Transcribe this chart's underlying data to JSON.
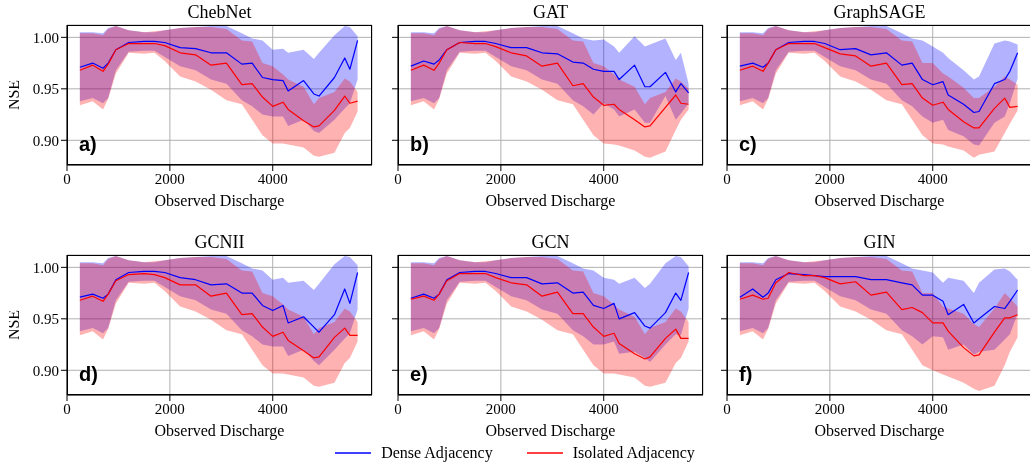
{
  "chart_data": [
    {
      "type": "line",
      "title": "ChebNet",
      "xlabel": "Observed Discharge",
      "ylabel": "NSE",
      "annotations": [
        "a)"
      ],
      "legend": "bottom",
      "grid": true,
      "xlim": [
        0,
        5930
      ],
      "xticks": [
        0,
        2000,
        4000
      ],
      "ylim": [
        0.876,
        1.012
      ],
      "yticks": [
        {
          "value": 0.9,
          "label": "0.90"
        },
        {
          "value": 0.95,
          "label": "0.95"
        },
        {
          "value": 1.0,
          "label": "1.00"
        }
      ],
      "x": [
        250,
        500,
        700,
        800,
        950,
        1200,
        1500,
        1700,
        1900,
        2200,
        2500,
        2800,
        3100,
        3400,
        3600,
        3800,
        4000,
        4200,
        4300,
        4600,
        4800,
        4900,
        5200,
        5400,
        5500,
        5650
      ],
      "series": [
        {
          "name": "Dense Adjacency",
          "color": "#0000ff",
          "values": [
            0.971,
            0.975,
            0.97,
            0.975,
            0.988,
            0.995,
            0.996,
            0.996,
            0.995,
            0.99,
            0.989,
            0.985,
            0.985,
            0.974,
            0.975,
            0.961,
            0.959,
            0.958,
            0.948,
            0.958,
            0.945,
            0.943,
            0.961,
            0.98,
            0.969,
            0.997
          ],
          "upper": [
            1.005,
            1.005,
            1.004,
            1.009,
            1.011,
            1.007,
            1.005,
            1.005,
            1.007,
            1.009,
            1.01,
            1.011,
            1.011,
            1.004,
            0.999,
            0.997,
            0.988,
            0.989,
            0.985,
            0.988,
            0.979,
            0.985,
            1.002,
            1.011,
            1.01,
            1.001
          ],
          "lower": [
            0.938,
            0.941,
            0.936,
            0.941,
            0.968,
            0.986,
            0.987,
            0.987,
            0.981,
            0.972,
            0.968,
            0.959,
            0.955,
            0.939,
            0.933,
            0.925,
            0.923,
            0.923,
            0.914,
            0.92,
            0.909,
            0.907,
            0.92,
            0.931,
            0.936,
            0.959
          ]
        },
        {
          "name": "Isolated Adjacency",
          "color": "#ff0000",
          "values": [
            0.968,
            0.973,
            0.967,
            0.974,
            0.988,
            0.994,
            0.994,
            0.994,
            0.992,
            0.985,
            0.983,
            0.973,
            0.975,
            0.954,
            0.955,
            0.942,
            0.933,
            0.937,
            0.93,
            0.919,
            0.913,
            0.914,
            0.929,
            0.943,
            0.936,
            0.938
          ],
          "upper": [
            1.004,
            1.004,
            1.002,
            1.008,
            1.011,
            1.007,
            1.005,
            1.006,
            1.007,
            1.009,
            1.01,
            1.01,
            1.008,
            0.997,
            0.996,
            0.975,
            0.972,
            0.964,
            0.959,
            0.952,
            0.935,
            0.941,
            0.947,
            0.96,
            0.957,
            0.947
          ],
          "lower": [
            0.934,
            0.938,
            0.93,
            0.94,
            0.965,
            0.985,
            0.984,
            0.985,
            0.977,
            0.962,
            0.957,
            0.949,
            0.939,
            0.935,
            0.92,
            0.905,
            0.897,
            0.897,
            0.896,
            0.893,
            0.885,
            0.884,
            0.888,
            0.907,
            0.912,
            0.928
          ]
        }
      ]
    },
    {
      "type": "line",
      "title": "GAT",
      "xlabel": "Observed Discharge",
      "annotations": [
        "b)"
      ],
      "grid": true,
      "tick_labels": "x",
      "xlim": [
        0,
        5930
      ],
      "xticks": [
        0,
        2000,
        4000
      ],
      "ylim": [
        0.876,
        1.012
      ],
      "yticks": [
        0.9,
        0.95,
        1.0
      ],
      "x": [
        250,
        500,
        700,
        800,
        950,
        1200,
        1500,
        1700,
        1900,
        2200,
        2500,
        2800,
        3100,
        3400,
        3600,
        3800,
        4000,
        4200,
        4300,
        4600,
        4800,
        4900,
        5200,
        5400,
        5500,
        5650
      ],
      "series": [
        {
          "color": "#0000ff",
          "values": [
            0.972,
            0.977,
            0.974,
            0.978,
            0.988,
            0.995,
            0.996,
            0.996,
            0.994,
            0.99,
            0.99,
            0.985,
            0.984,
            0.976,
            0.975,
            0.969,
            0.967,
            0.967,
            0.959,
            0.973,
            0.952,
            0.952,
            0.966,
            0.947,
            0.955,
            0.946
          ],
          "upper": [
            1.005,
            1.005,
            1.004,
            1.009,
            1.011,
            1.007,
            1.005,
            1.005,
            1.007,
            1.009,
            1.01,
            1.011,
            1.011,
            1.004,
            0.999,
            0.997,
            0.998,
            0.991,
            0.985,
            1.001,
            0.991,
            0.993,
            0.999,
            0.978,
            0.985,
            0.955
          ],
          "lower": [
            0.938,
            0.941,
            0.936,
            0.941,
            0.968,
            0.986,
            0.987,
            0.987,
            0.981,
            0.972,
            0.968,
            0.959,
            0.955,
            0.939,
            0.933,
            0.925,
            0.936,
            0.93,
            0.923,
            0.93,
            0.917,
            0.917,
            0.943,
            0.92,
            0.926,
            0.936
          ]
        },
        {
          "color": "#ff0000",
          "values": [
            0.968,
            0.973,
            0.968,
            0.975,
            0.988,
            0.995,
            0.994,
            0.994,
            0.991,
            0.985,
            0.982,
            0.972,
            0.975,
            0.953,
            0.955,
            0.942,
            0.934,
            0.935,
            0.93,
            0.92,
            0.913,
            0.914,
            0.932,
            0.944,
            0.936,
            0.935
          ],
          "upper": [
            1.004,
            1.004,
            1.002,
            1.008,
            1.011,
            1.007,
            1.005,
            1.006,
            1.007,
            1.009,
            1.01,
            1.01,
            1.008,
            0.997,
            0.996,
            0.975,
            0.972,
            0.964,
            0.959,
            0.952,
            0.935,
            0.941,
            0.947,
            0.96,
            0.957,
            0.95
          ],
          "lower": [
            0.934,
            0.938,
            0.93,
            0.94,
            0.965,
            0.985,
            0.984,
            0.985,
            0.977,
            0.962,
            0.957,
            0.949,
            0.939,
            0.935,
            0.92,
            0.905,
            0.897,
            0.896,
            0.895,
            0.89,
            0.884,
            0.883,
            0.889,
            0.91,
            0.92,
            0.93
          ]
        }
      ]
    },
    {
      "type": "line",
      "title": "GraphSAGE",
      "xlabel": "Observed Discharge",
      "annotations": [
        "c)"
      ],
      "grid": true,
      "tick_labels": "x",
      "xlim": [
        0,
        5930
      ],
      "xticks": [
        0,
        2000,
        4000
      ],
      "ylim": [
        0.876,
        1.012
      ],
      "yticks": [
        0.9,
        0.95,
        1.0
      ],
      "x": [
        250,
        500,
        700,
        800,
        950,
        1200,
        1500,
        1700,
        1900,
        2200,
        2500,
        2800,
        3100,
        3400,
        3600,
        3800,
        4000,
        4200,
        4300,
        4600,
        4800,
        4900,
        5200,
        5400,
        5500,
        5650
      ],
      "series": [
        {
          "color": "#0000ff",
          "values": [
            0.972,
            0.975,
            0.971,
            0.975,
            0.988,
            0.995,
            0.996,
            0.996,
            0.994,
            0.988,
            0.989,
            0.983,
            0.985,
            0.973,
            0.975,
            0.959,
            0.954,
            0.957,
            0.944,
            0.935,
            0.927,
            0.928,
            0.955,
            0.959,
            0.967,
            0.985
          ],
          "upper": [
            1.005,
            1.005,
            1.004,
            1.009,
            1.011,
            1.007,
            1.005,
            1.005,
            1.007,
            1.009,
            1.01,
            1.011,
            1.011,
            1.004,
            0.999,
            0.997,
            0.991,
            0.985,
            0.98,
            0.968,
            0.959,
            0.962,
            0.994,
            0.997,
            0.996,
            0.993
          ],
          "lower": [
            0.938,
            0.941,
            0.936,
            0.941,
            0.968,
            0.986,
            0.987,
            0.987,
            0.981,
            0.972,
            0.968,
            0.959,
            0.955,
            0.939,
            0.933,
            0.923,
            0.917,
            0.92,
            0.91,
            0.904,
            0.896,
            0.895,
            0.917,
            0.923,
            0.936,
            0.96
          ]
        },
        {
          "color": "#ff0000",
          "values": [
            0.968,
            0.972,
            0.967,
            0.975,
            0.988,
            0.994,
            0.994,
            0.994,
            0.99,
            0.984,
            0.982,
            0.972,
            0.975,
            0.954,
            0.955,
            0.941,
            0.934,
            0.937,
            0.93,
            0.918,
            0.912,
            0.912,
            0.931,
            0.941,
            0.932,
            0.933
          ],
          "upper": [
            1.004,
            1.004,
            1.002,
            1.008,
            1.011,
            1.007,
            1.005,
            1.006,
            1.007,
            1.009,
            1.01,
            1.01,
            1.008,
            0.997,
            0.996,
            0.975,
            0.975,
            0.965,
            0.962,
            0.951,
            0.941,
            0.941,
            0.952,
            0.962,
            0.959,
            0.954
          ],
          "lower": [
            0.934,
            0.938,
            0.93,
            0.94,
            0.965,
            0.985,
            0.984,
            0.985,
            0.977,
            0.962,
            0.957,
            0.949,
            0.939,
            0.935,
            0.92,
            0.905,
            0.897,
            0.896,
            0.894,
            0.89,
            0.883,
            0.886,
            0.889,
            0.907,
            0.916,
            0.929
          ]
        }
      ]
    },
    {
      "type": "line",
      "title": "GCNII",
      "xlabel": "Observed Discharge",
      "ylabel": "NSE",
      "annotations": [
        "d)"
      ],
      "grid": true,
      "xlim": [
        0,
        5930
      ],
      "xticks": [
        0,
        2000,
        4000
      ],
      "ylim": [
        0.876,
        1.012
      ],
      "yticks": [
        {
          "value": 0.9,
          "label": "0.90"
        },
        {
          "value": 0.95,
          "label": "0.95"
        },
        {
          "value": 1.0,
          "label": "1.00"
        }
      ],
      "x": [
        250,
        500,
        700,
        800,
        950,
        1200,
        1500,
        1700,
        1900,
        2200,
        2500,
        2800,
        3100,
        3400,
        3600,
        3800,
        4000,
        4200,
        4300,
        4600,
        4800,
        4900,
        5200,
        5400,
        5500,
        5650
      ],
      "series": [
        {
          "color": "#0000ff",
          "values": [
            0.971,
            0.974,
            0.97,
            0.974,
            0.988,
            0.995,
            0.996,
            0.996,
            0.995,
            0.99,
            0.988,
            0.983,
            0.984,
            0.975,
            0.975,
            0.963,
            0.958,
            0.963,
            0.946,
            0.952,
            0.942,
            0.937,
            0.954,
            0.979,
            0.965,
            0.995
          ],
          "upper": [
            1.005,
            1.005,
            1.004,
            1.009,
            1.011,
            1.007,
            1.005,
            1.005,
            1.007,
            1.009,
            1.01,
            1.011,
            1.011,
            1.004,
            0.999,
            0.997,
            0.988,
            0.99,
            0.985,
            0.987,
            0.978,
            0.984,
            1.003,
            1.011,
            1.01,
            1.002
          ],
          "lower": [
            0.938,
            0.941,
            0.936,
            0.941,
            0.968,
            0.986,
            0.987,
            0.987,
            0.981,
            0.972,
            0.968,
            0.959,
            0.955,
            0.939,
            0.933,
            0.925,
            0.923,
            0.923,
            0.914,
            0.92,
            0.909,
            0.905,
            0.92,
            0.931,
            0.936,
            0.959
          ]
        },
        {
          "color": "#ff0000",
          "values": [
            0.968,
            0.972,
            0.967,
            0.974,
            0.987,
            0.993,
            0.994,
            0.993,
            0.99,
            0.983,
            0.983,
            0.972,
            0.975,
            0.954,
            0.955,
            0.942,
            0.933,
            0.937,
            0.929,
            0.919,
            0.912,
            0.913,
            0.932,
            0.941,
            0.934,
            0.934
          ],
          "upper": [
            1.004,
            1.004,
            1.002,
            1.008,
            1.011,
            1.007,
            1.005,
            1.006,
            1.007,
            1.009,
            1.01,
            1.01,
            1.008,
            0.997,
            0.996,
            0.975,
            0.972,
            0.964,
            0.959,
            0.952,
            0.935,
            0.941,
            0.947,
            0.96,
            0.957,
            0.947
          ],
          "lower": [
            0.934,
            0.938,
            0.93,
            0.94,
            0.965,
            0.985,
            0.984,
            0.985,
            0.977,
            0.962,
            0.957,
            0.949,
            0.939,
            0.935,
            0.92,
            0.905,
            0.897,
            0.897,
            0.896,
            0.893,
            0.885,
            0.884,
            0.888,
            0.907,
            0.912,
            0.928
          ]
        }
      ]
    },
    {
      "type": "line",
      "title": "GCN",
      "xlabel": "Observed Discharge",
      "annotations": [
        "e)"
      ],
      "grid": true,
      "tick_labels": "x",
      "xlim": [
        0,
        5930
      ],
      "xticks": [
        0,
        2000,
        4000
      ],
      "ylim": [
        0.876,
        1.012
      ],
      "yticks": [
        0.9,
        0.95,
        1.0
      ],
      "x": [
        250,
        500,
        700,
        800,
        950,
        1200,
        1500,
        1700,
        1900,
        2200,
        2500,
        2800,
        3100,
        3400,
        3600,
        3800,
        4000,
        4200,
        4300,
        4600,
        4800,
        4900,
        5200,
        5400,
        5500,
        5650
      ],
      "series": [
        {
          "color": "#0000ff",
          "values": [
            0.97,
            0.974,
            0.97,
            0.974,
            0.988,
            0.995,
            0.996,
            0.996,
            0.994,
            0.99,
            0.99,
            0.984,
            0.985,
            0.975,
            0.976,
            0.963,
            0.96,
            0.965,
            0.95,
            0.956,
            0.943,
            0.941,
            0.956,
            0.975,
            0.968,
            0.995
          ],
          "upper": [
            1.005,
            1.005,
            1.004,
            1.009,
            1.011,
            1.007,
            1.005,
            1.005,
            1.007,
            1.009,
            1.01,
            1.011,
            1.011,
            1.004,
            0.999,
            0.997,
            0.99,
            0.988,
            0.984,
            0.99,
            0.98,
            0.984,
            1.004,
            1.011,
            1.01,
            1.001
          ],
          "lower": [
            0.938,
            0.941,
            0.936,
            0.941,
            0.968,
            0.986,
            0.987,
            0.987,
            0.981,
            0.972,
            0.968,
            0.959,
            0.955,
            0.939,
            0.933,
            0.925,
            0.925,
            0.928,
            0.916,
            0.918,
            0.912,
            0.908,
            0.925,
            0.935,
            0.934,
            0.96
          ]
        },
        {
          "color": "#ff0000",
          "values": [
            0.969,
            0.972,
            0.968,
            0.974,
            0.987,
            0.994,
            0.994,
            0.994,
            0.99,
            0.985,
            0.983,
            0.972,
            0.976,
            0.955,
            0.955,
            0.942,
            0.933,
            0.936,
            0.926,
            0.916,
            0.911,
            0.913,
            0.931,
            0.94,
            0.931,
            0.931
          ],
          "upper": [
            1.004,
            1.004,
            1.002,
            1.008,
            1.011,
            1.007,
            1.005,
            1.006,
            1.007,
            1.009,
            1.01,
            1.01,
            1.008,
            0.997,
            0.996,
            0.975,
            0.972,
            0.964,
            0.959,
            0.952,
            0.935,
            0.941,
            0.947,
            0.96,
            0.957,
            0.947
          ],
          "lower": [
            0.934,
            0.938,
            0.93,
            0.94,
            0.965,
            0.985,
            0.984,
            0.985,
            0.977,
            0.962,
            0.957,
            0.949,
            0.939,
            0.935,
            0.92,
            0.905,
            0.897,
            0.897,
            0.896,
            0.893,
            0.885,
            0.884,
            0.888,
            0.907,
            0.912,
            0.928
          ]
        }
      ]
    },
    {
      "type": "line",
      "title": "GIN",
      "xlabel": "Observed Discharge",
      "annotations": [
        "f)"
      ],
      "grid": true,
      "tick_labels": "x",
      "xlim": [
        0,
        5930
      ],
      "xticks": [
        0,
        2000,
        4000
      ],
      "ylim": [
        0.876,
        1.012
      ],
      "yticks": [
        0.9,
        0.95,
        1.0
      ],
      "x": [
        250,
        500,
        700,
        800,
        950,
        1200,
        1500,
        1700,
        1900,
        2200,
        2500,
        2800,
        3100,
        3400,
        3600,
        3800,
        4000,
        4200,
        4300,
        4600,
        4800,
        4900,
        5200,
        5400,
        5500,
        5650
      ],
      "series": [
        {
          "color": "#0000ff",
          "values": [
            0.971,
            0.979,
            0.971,
            0.975,
            0.988,
            0.994,
            0.993,
            0.992,
            0.991,
            0.991,
            0.991,
            0.988,
            0.988,
            0.985,
            0.983,
            0.973,
            0.973,
            0.967,
            0.954,
            0.964,
            0.946,
            0.95,
            0.962,
            0.96,
            0.967,
            0.978
          ],
          "upper": [
            1.005,
            1.005,
            1.004,
            1.009,
            1.011,
            1.007,
            1.005,
            1.005,
            1.007,
            1.009,
            1.01,
            1.011,
            1.011,
            1.004,
            0.999,
            0.997,
            0.995,
            0.985,
            0.99,
            0.987,
            0.975,
            0.985,
            0.998,
            0.999,
            0.996,
            0.988
          ],
          "lower": [
            0.938,
            0.941,
            0.936,
            0.941,
            0.968,
            0.986,
            0.987,
            0.987,
            0.981,
            0.972,
            0.968,
            0.959,
            0.955,
            0.939,
            0.933,
            0.925,
            0.933,
            0.932,
            0.92,
            0.925,
            0.915,
            0.918,
            0.92,
            0.93,
            0.935,
            0.955
          ]
        },
        {
          "color": "#ff0000",
          "values": [
            0.969,
            0.973,
            0.969,
            0.97,
            0.985,
            0.995,
            0.992,
            0.992,
            0.99,
            0.984,
            0.986,
            0.973,
            0.976,
            0.959,
            0.961,
            0.956,
            0.946,
            0.946,
            0.938,
            0.922,
            0.914,
            0.915,
            0.937,
            0.951,
            0.951,
            0.954
          ],
          "upper": [
            1.004,
            1.004,
            1.002,
            1.008,
            1.011,
            1.007,
            1.005,
            1.006,
            1.007,
            1.009,
            1.01,
            1.01,
            1.008,
            0.997,
            0.996,
            0.975,
            0.975,
            0.962,
            0.96,
            0.955,
            0.945,
            0.942,
            0.96,
            0.975,
            0.97,
            0.962
          ],
          "lower": [
            0.934,
            0.938,
            0.93,
            0.94,
            0.965,
            0.985,
            0.984,
            0.985,
            0.977,
            0.962,
            0.957,
            0.949,
            0.939,
            0.935,
            0.92,
            0.905,
            0.9,
            0.896,
            0.894,
            0.888,
            0.882,
            0.88,
            0.885,
            0.905,
            0.918,
            0.932
          ]
        }
      ]
    }
  ]
}
